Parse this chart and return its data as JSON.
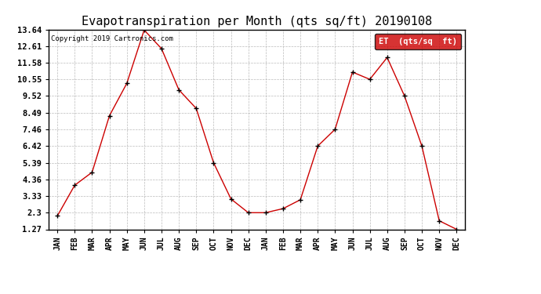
{
  "title": "Evapotranspiration per Month (qts sq/ft) 20190108",
  "copyright": "Copyright 2019 Cartronics.com",
  "legend_label": "ET  (qts/sq  ft)",
  "x_labels": [
    "JAN",
    "FEB",
    "MAR",
    "APR",
    "MAY",
    "JUN",
    "JUL",
    "AUG",
    "SEP",
    "OCT",
    "NOV",
    "DEC",
    "JAN",
    "FEB",
    "MAR",
    "APR",
    "MAY",
    "JUN",
    "JUL",
    "AUG",
    "SEP",
    "OCT",
    "NOV",
    "DEC"
  ],
  "y_values": [
    2.1,
    4.0,
    4.8,
    8.3,
    10.3,
    13.6,
    12.45,
    9.9,
    8.75,
    5.39,
    3.15,
    2.3,
    2.3,
    2.55,
    3.1,
    6.42,
    7.46,
    11.0,
    10.55,
    11.9,
    9.52,
    6.42,
    1.8,
    1.27
  ],
  "y_ticks": [
    1.27,
    2.3,
    3.33,
    4.36,
    5.39,
    6.42,
    7.46,
    8.49,
    9.52,
    10.55,
    11.58,
    12.61,
    13.64
  ],
  "line_color": "#cc0000",
  "marker_color": "#000000",
  "bg_color": "#ffffff",
  "grid_color": "#aaaaaa",
  "title_fontsize": 11,
  "legend_bg": "#cc0000",
  "legend_fg": "#ffffff",
  "fig_width": 6.9,
  "fig_height": 3.75,
  "dpi": 100
}
